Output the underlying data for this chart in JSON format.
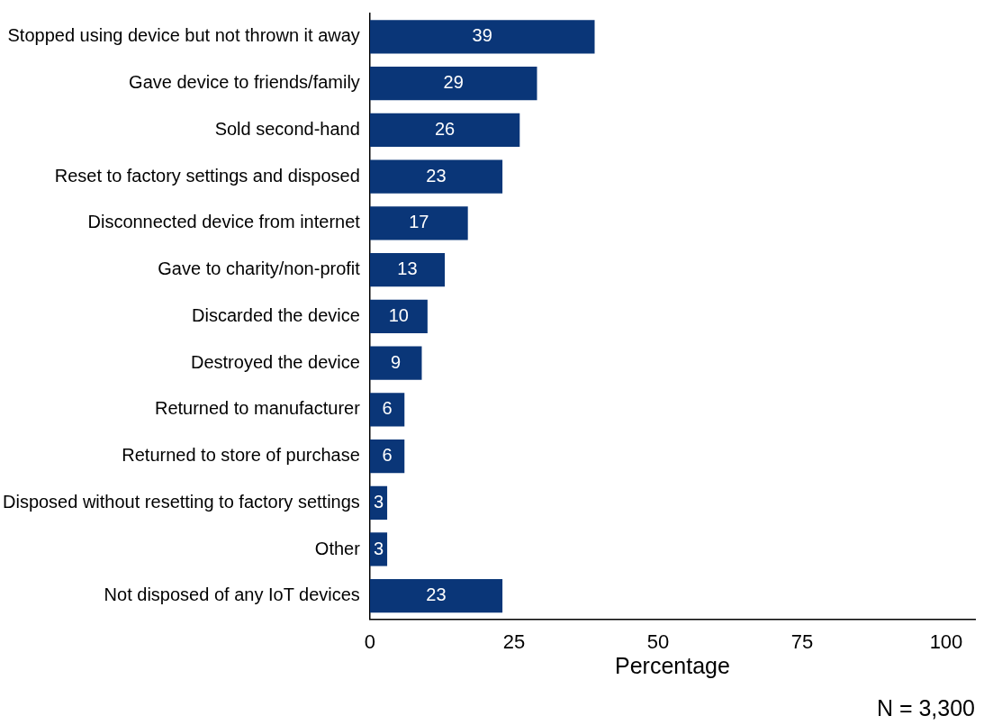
{
  "chart_data": {
    "type": "bar",
    "orientation": "horizontal",
    "xlabel": "Percentage",
    "categories": [
      "Stopped using device but not thrown it away",
      "Gave device to friends/family",
      "Sold second-hand",
      "Reset to factory settings and disposed",
      "Disconnected device from internet",
      "Gave to charity/non-profit",
      "Discarded the device",
      "Destroyed the device",
      "Returned to manufacturer",
      "Returned to store of purchase",
      "Disposed without resetting to factory settings",
      "Other",
      "Not disposed of any IoT devices"
    ],
    "values": [
      39,
      29,
      26,
      23,
      17,
      13,
      10,
      9,
      6,
      6,
      3,
      3,
      23
    ],
    "color": "#0a3678",
    "xlim": [
      0,
      105
    ],
    "xticks": [
      0,
      25,
      50,
      75,
      100
    ],
    "grid": false,
    "legend": false,
    "data_labels": true,
    "annotations": [
      "N = 3,300"
    ]
  }
}
